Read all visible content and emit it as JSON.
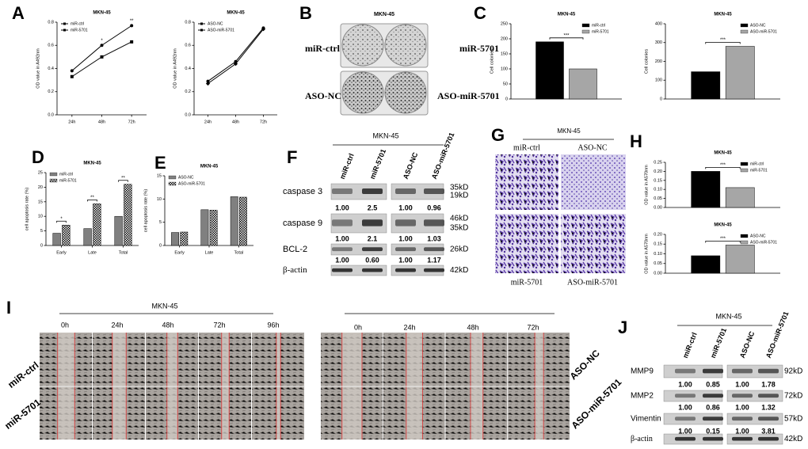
{
  "chart_data": [
    {
      "type": "line",
      "title": "MKN-45",
      "ylabel": "OD value in A492nm",
      "categories": [
        "24h",
        "48h",
        "72h"
      ],
      "series": [
        {
          "name": "miR-ctrl",
          "color": "#000000",
          "marker": "circle",
          "values": [
            0.38,
            0.6,
            0.77
          ]
        },
        {
          "name": "miR-5701",
          "color": "#000000",
          "marker": "square",
          "values": [
            0.33,
            0.5,
            0.63
          ]
        }
      ],
      "annotations": [
        null,
        "*",
        "**"
      ],
      "ylim": [
        0,
        0.8
      ],
      "yticks": [
        {
          "value": 0,
          "label": "0.0"
        },
        {
          "value": 0.2,
          "label": "0.2"
        },
        {
          "value": 0.4,
          "label": "0.4"
        },
        {
          "value": 0.6,
          "label": "0.6"
        },
        {
          "value": 0.8,
          "label": "0.8"
        }
      ],
      "legend": "upper left"
    },
    {
      "type": "line",
      "title": "MKN-45",
      "ylabel": "OD value in A492nm",
      "categories": [
        "24h",
        "48h",
        "72h"
      ],
      "series": [
        {
          "name": "ASO-NC",
          "color": "#000000",
          "marker": "circle",
          "values": [
            0.29,
            0.46,
            0.75
          ]
        },
        {
          "name": "ASO-miR-5701",
          "color": "#000000",
          "marker": "diamond",
          "values": [
            0.27,
            0.44,
            0.74
          ]
        }
      ],
      "ylim": [
        0,
        0.8
      ],
      "yticks": [
        {
          "value": 0,
          "label": "0.0"
        },
        {
          "value": 0.2,
          "label": "0.2"
        },
        {
          "value": 0.4,
          "label": "0.4"
        },
        {
          "value": 0.6,
          "label": "0.6"
        },
        {
          "value": 0.8,
          "label": "0.8"
        }
      ],
      "legend": "upper left"
    },
    {
      "type": "bar",
      "title": "MKN-45",
      "ylabel": "Cell colonies",
      "series": [
        {
          "name": "miR-ctrl",
          "color": "#000000",
          "values": [
            190
          ]
        },
        {
          "name": "miR-5701",
          "color": "#a6a6a6",
          "values": [
            100
          ]
        }
      ],
      "annotations": [
        "***"
      ],
      "ylim": [
        0,
        250
      ],
      "yticks": [
        0,
        50,
        100,
        150,
        200,
        250
      ],
      "legend": "upper right"
    },
    {
      "type": "bar",
      "title": "MKN-45",
      "ylabel": "Cell colonies",
      "series": [
        {
          "name": "ASO-NC",
          "color": "#000000",
          "values": [
            145
          ]
        },
        {
          "name": "ASO-miR-5701",
          "color": "#a6a6a6",
          "values": [
            280
          ]
        }
      ],
      "annotations": [
        "***"
      ],
      "ylim": [
        0,
        400
      ],
      "yticks": [
        0,
        100,
        200,
        300,
        400
      ],
      "legend": "upper right"
    },
    {
      "type": "bar",
      "title": "MKN-45",
      "ylabel": "cell apoptosis rate (%)",
      "categories": [
        "Early",
        "Late",
        "Total"
      ],
      "series": [
        {
          "name": "miR-ctrl",
          "color": "#808080",
          "values": [
            4.2,
            5.8,
            10
          ]
        },
        {
          "name": "miR-5701",
          "color": "#ffffff",
          "pattern": "checker",
          "values": [
            7,
            14.3,
            21
          ]
        }
      ],
      "annotations": [
        "*",
        "**",
        "**"
      ],
      "ylim": [
        0,
        25
      ],
      "yticks": [
        0,
        5,
        10,
        15,
        20,
        25
      ],
      "legend": "upper left"
    },
    {
      "type": "bar",
      "title": "MKN-45",
      "ylabel": "cell apoptosis rate (%)",
      "categories": [
        "Early",
        "Late",
        "Total"
      ],
      "series": [
        {
          "name": "ASO-NC",
          "color": "#808080",
          "values": [
            2.8,
            7.7,
            10.5
          ]
        },
        {
          "name": "ASO-miR-5701",
          "color": "#ffffff",
          "pattern": "checker",
          "values": [
            2.9,
            7.6,
            10.4
          ]
        }
      ],
      "ylim": [
        0,
        15
      ],
      "yticks": [
        0,
        5,
        10,
        15
      ],
      "legend": "upper left"
    },
    {
      "type": "bar",
      "title": "MKN-45",
      "ylabel": "OD value in A570nm",
      "series": [
        {
          "name": "miR-ctrl",
          "color": "#000000",
          "values": [
            0.2
          ]
        },
        {
          "name": "miR-5701",
          "color": "#a6a6a6",
          "values": [
            0.11
          ]
        }
      ],
      "annotations": [
        "***"
      ],
      "ylim": [
        0,
        0.25
      ],
      "yticks": [
        {
          "value": 0,
          "label": "0.00"
        },
        {
          "value": 0.05,
          "label": "0.05"
        },
        {
          "value": 0.1,
          "label": "0.10"
        },
        {
          "value": 0.15,
          "label": "0.15"
        },
        {
          "value": 0.2,
          "label": "0.20"
        },
        {
          "value": 0.25,
          "label": "0.25"
        }
      ],
      "legend": "upper right"
    },
    {
      "type": "bar",
      "title": "MKN-45",
      "ylabel": "OD value in A570nm",
      "series": [
        {
          "name": "ASO-NC",
          "color": "#000000",
          "values": [
            0.09
          ]
        },
        {
          "name": "ASO-miR-5701",
          "color": "#a6a6a6",
          "values": [
            0.145
          ]
        }
      ],
      "annotations": [
        "***"
      ],
      "ylim": [
        0,
        0.2
      ],
      "yticks": [
        {
          "value": 0,
          "label": "0.00"
        },
        {
          "value": 0.05,
          "label": "0.05"
        },
        {
          "value": 0.1,
          "label": "0.10"
        },
        {
          "value": 0.15,
          "label": "0.15"
        },
        {
          "value": 0.2,
          "label": "0.20"
        }
      ],
      "legend": "upper right"
    }
  ],
  "figure": {
    "panels": [
      "A",
      "B",
      "C",
      "D",
      "E",
      "F",
      "G",
      "H",
      "I",
      "J"
    ],
    "B": {
      "title": "MKN-45",
      "labels": [
        "miR-ctrl",
        "miR-5701",
        "ASO-NC",
        "ASO-miR-5701"
      ]
    },
    "F": {
      "title": "MKN-45",
      "lanes": [
        "miR-ctrl",
        "miR-5701",
        "ASO-NC",
        "ASO-miR-5701"
      ],
      "rows": [
        {
          "name": "caspase 3",
          "values": [
            "1.00",
            "2.5",
            "1.00",
            "0.96"
          ],
          "kd": [
            "35kD",
            "19kD"
          ]
        },
        {
          "name": "caspase 9",
          "values": [
            "1.00",
            "2.1",
            "1.00",
            "1.03"
          ],
          "kd": [
            "46kD",
            "35kD"
          ]
        },
        {
          "name": "BCL-2",
          "values": [
            "1.00",
            "0.60",
            "1.00",
            "1.17"
          ],
          "kd": [
            "26kD"
          ]
        },
        {
          "name": "β-actin",
          "kd": [
            "42kD"
          ]
        }
      ]
    },
    "G": {
      "title": "MKN-45",
      "labels": [
        "miR-ctrl",
        "ASO-NC",
        "miR-5701",
        "ASO-miR-5701"
      ]
    },
    "I": {
      "title": "MKN-45",
      "times_left": [
        "0h",
        "24h",
        "48h",
        "72h",
        "96h"
      ],
      "times_right": [
        "0h",
        "24h",
        "48h",
        "72h"
      ],
      "rows_left": [
        "miR-ctrl",
        "miR-5701"
      ],
      "rows_right": [
        "ASO-NC",
        "ASO-miR-5701"
      ]
    },
    "J": {
      "title": "MKN-45",
      "lanes": [
        "miR-ctrl",
        "miR-5701",
        "ASO-NC",
        "ASO-miR-5701"
      ],
      "rows": [
        {
          "name": "MMP9",
          "values": [
            "1.00",
            "0.85",
            "1.00",
            "1.78"
          ],
          "kd": [
            "92kD"
          ]
        },
        {
          "name": "MMP2",
          "values": [
            "1.00",
            "0.86",
            "1.00",
            "1.32"
          ],
          "kd": [
            "72kD"
          ]
        },
        {
          "name": "Vimentin",
          "values": [
            "1.00",
            "0.15",
            "1.00",
            "3.81"
          ],
          "kd": [
            "57kD"
          ]
        },
        {
          "name": "β-actin",
          "kd": [
            "42kD"
          ]
        }
      ]
    }
  }
}
